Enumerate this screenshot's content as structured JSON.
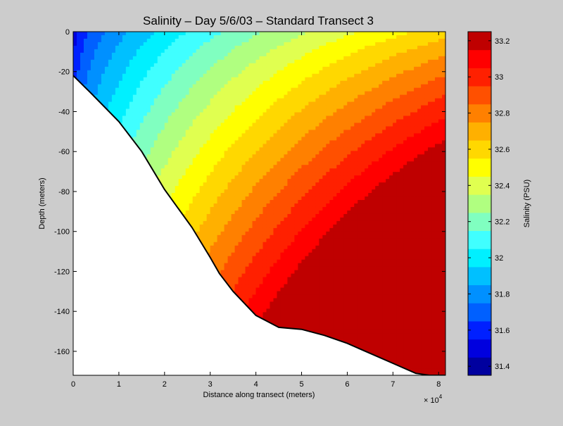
{
  "chart_data": {
    "type": "heatmap",
    "title": "Salinity – Day 5/6/03 – Standard Transect 3",
    "xlabel": "Distance along transect (meters)",
    "ylabel": "Depth (meters)",
    "x_multiplier_base": "× 10",
    "x_multiplier_exp": "4",
    "xlim": [
      0,
      81500
    ],
    "ylim": [
      -172,
      0
    ],
    "xticks": [
      0,
      1,
      2,
      3,
      4,
      5,
      6,
      7,
      8
    ],
    "yticks": [
      0,
      -20,
      -40,
      -60,
      -80,
      -100,
      -120,
      -140,
      -160
    ],
    "colorbar": {
      "label": "Salinity (PSU)",
      "range": [
        31.35,
        33.25
      ],
      "ticks": [
        31.4,
        31.6,
        31.8,
        32,
        32.2,
        32.4,
        32.6,
        32.8,
        33,
        33.2
      ],
      "tick_labels": [
        "31.4",
        "31.6",
        "31.8",
        "32",
        "32.2",
        "32.4",
        "32.6",
        "32.8",
        "33",
        "33.2"
      ],
      "levels": [
        31.35,
        31.45,
        31.55,
        31.65,
        31.75,
        31.85,
        31.95,
        32.05,
        32.15,
        32.25,
        32.35,
        32.45,
        32.55,
        32.65,
        32.75,
        32.85,
        32.95,
        33.05,
        33.15,
        33.25
      ],
      "colors": [
        "#00009f",
        "#0000df",
        "#0020ff",
        "#0060ff",
        "#0090ff",
        "#00c0ff",
        "#00f0ff",
        "#40ffff",
        "#80ffc0",
        "#b0ff80",
        "#e0ff50",
        "#ffff00",
        "#ffd800",
        "#ffb000",
        "#ff8000",
        "#ff5000",
        "#ff2000",
        "#ff0000",
        "#bf0000"
      ]
    },
    "bottom_profile": {
      "x": [
        0,
        4000,
        10000,
        15000,
        20000,
        26000,
        30000,
        32000,
        35000,
        40000,
        45000,
        50000,
        55000,
        60000,
        65000,
        70000,
        75000,
        78000,
        81500
      ],
      "depth": [
        -22,
        -31,
        -45,
        -60,
        -79,
        -98,
        -113,
        -121,
        -130,
        -142,
        -148,
        -149,
        -152,
        -156,
        -161,
        -166,
        -171,
        -172,
        -172
      ]
    },
    "grid": false
  }
}
